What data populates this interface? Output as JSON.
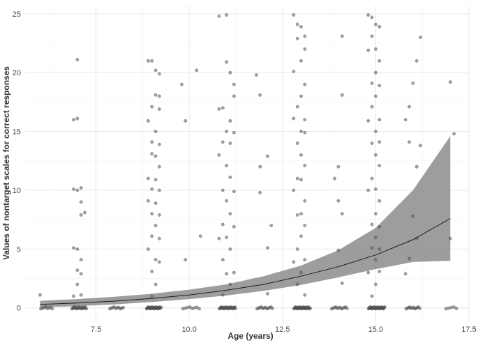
{
  "chart_data": {
    "type": "scatter",
    "title": "",
    "xlabel": "Age (years)",
    "ylabel": "Values of nontarget scales for correct responses",
    "xlim": [
      5.6,
      17.5
    ],
    "ylim": [
      -1.2,
      25.7
    ],
    "x_ticks": [
      7.5,
      10.0,
      12.5,
      15.0,
      17.5
    ],
    "x_tick_labels": [
      "7.5",
      "10.0",
      "12.5",
      "15.0",
      "17.5"
    ],
    "y_ticks": [
      0,
      5,
      10,
      15,
      20,
      25
    ],
    "y_tick_labels": [
      "0",
      "5",
      "10",
      "15",
      "20",
      "25"
    ],
    "grid": true,
    "colors": {
      "points": "#555555",
      "ribbon": "#8c8c8c",
      "fit_line": "#1a1a1a"
    },
    "fit": {
      "x": [
        6.0,
        7.0,
        8.0,
        9.0,
        10.0,
        11.0,
        12.0,
        13.0,
        14.0,
        15.0,
        16.0,
        17.0
      ],
      "y": [
        0.3,
        0.42,
        0.58,
        0.8,
        1.1,
        1.5,
        2.0,
        2.7,
        3.5,
        4.5,
        5.8,
        7.6
      ],
      "lower": [
        0.05,
        0.15,
        0.3,
        0.5,
        0.75,
        1.05,
        1.45,
        1.95,
        2.6,
        3.3,
        3.9,
        4.0
      ],
      "upper": [
        0.6,
        0.75,
        0.95,
        1.2,
        1.55,
        2.0,
        2.7,
        3.6,
        4.9,
        6.8,
        10.0,
        14.6
      ]
    },
    "scatter": [
      [
        6.0,
        1.1
      ],
      [
        7.0,
        21.1
      ],
      [
        6.9,
        16.0
      ],
      [
        7.0,
        16.1
      ],
      [
        6.9,
        10.1
      ],
      [
        7.0,
        10.0
      ],
      [
        7.1,
        10.2
      ],
      [
        7.1,
        9.0
      ],
      [
        7.2,
        8.1
      ],
      [
        7.1,
        7.9
      ],
      [
        6.9,
        5.1
      ],
      [
        7.0,
        5.0
      ],
      [
        7.1,
        4.1
      ],
      [
        7.0,
        3.2
      ],
      [
        7.1,
        2.9
      ],
      [
        7.0,
        2.0
      ],
      [
        6.9,
        1.0
      ],
      [
        7.1,
        1.1
      ],
      [
        8.9,
        21.0
      ],
      [
        9.0,
        21.0
      ],
      [
        9.1,
        20.2
      ],
      [
        9.2,
        19.9
      ],
      [
        9.1,
        18.1
      ],
      [
        9.2,
        18.0
      ],
      [
        9.0,
        17.1
      ],
      [
        9.2,
        16.9
      ],
      [
        8.9,
        15.9
      ],
      [
        9.1,
        15.0
      ],
      [
        9.0,
        14.1
      ],
      [
        9.2,
        13.9
      ],
      [
        9.0,
        13.1
      ],
      [
        9.1,
        12.9
      ],
      [
        9.2,
        12.0
      ],
      [
        8.9,
        11.0
      ],
      [
        9.1,
        10.9
      ],
      [
        9.0,
        10.1
      ],
      [
        9.2,
        10.0
      ],
      [
        8.9,
        9.1
      ],
      [
        9.1,
        8.9
      ],
      [
        9.0,
        8.0
      ],
      [
        9.2,
        7.9
      ],
      [
        9.1,
        7.0
      ],
      [
        9.0,
        6.1
      ],
      [
        9.2,
        5.9
      ],
      [
        8.9,
        5.0
      ],
      [
        9.1,
        4.1
      ],
      [
        9.2,
        3.9
      ],
      [
        9.0,
        3.1
      ],
      [
        9.1,
        2.0
      ],
      [
        9.0,
        1.0
      ],
      [
        9.8,
        19.0
      ],
      [
        10.2,
        20.2
      ],
      [
        10.3,
        6.1
      ],
      [
        9.9,
        15.9
      ],
      [
        9.9,
        4.1
      ],
      [
        10.8,
        24.8
      ],
      [
        11.0,
        24.9
      ],
      [
        11.0,
        20.9
      ],
      [
        11.1,
        20.0
      ],
      [
        11.2,
        19.0
      ],
      [
        11.2,
        18.0
      ],
      [
        10.9,
        17.0
      ],
      [
        10.8,
        16.9
      ],
      [
        11.1,
        15.9
      ],
      [
        11.0,
        15.0
      ],
      [
        11.2,
        14.9
      ],
      [
        10.9,
        14.1
      ],
      [
        11.1,
        14.0
      ],
      [
        10.8,
        13.0
      ],
      [
        11.0,
        12.1
      ],
      [
        11.1,
        11.1
      ],
      [
        10.9,
        10.0
      ],
      [
        11.2,
        9.9
      ],
      [
        11.0,
        9.1
      ],
      [
        11.1,
        8.0
      ],
      [
        10.9,
        7.1
      ],
      [
        11.2,
        6.9
      ],
      [
        11.0,
        6.0
      ],
      [
        10.8,
        5.9
      ],
      [
        11.1,
        5.0
      ],
      [
        10.9,
        4.1
      ],
      [
        11.2,
        3.0
      ],
      [
        11.0,
        2.9
      ],
      [
        11.1,
        2.0
      ],
      [
        10.9,
        1.1
      ],
      [
        11.8,
        19.8
      ],
      [
        11.9,
        18.1
      ],
      [
        11.9,
        12.0
      ],
      [
        12.1,
        12.9
      ],
      [
        11.9,
        9.8
      ],
      [
        12.1,
        5.1
      ],
      [
        12.2,
        7.0
      ],
      [
        12.1,
        1.2
      ],
      [
        12.8,
        24.9
      ],
      [
        12.9,
        24.1
      ],
      [
        13.0,
        23.9
      ],
      [
        13.1,
        23.1
      ],
      [
        12.9,
        22.9
      ],
      [
        13.1,
        22.0
      ],
      [
        13.0,
        21.0
      ],
      [
        12.8,
        20.1
      ],
      [
        13.1,
        19.0
      ],
      [
        13.0,
        18.0
      ],
      [
        12.9,
        17.1
      ],
      [
        13.1,
        16.0
      ],
      [
        12.8,
        16.1
      ],
      [
        13.0,
        15.0
      ],
      [
        13.1,
        14.9
      ],
      [
        12.9,
        14.0
      ],
      [
        13.0,
        13.0
      ],
      [
        13.1,
        12.1
      ],
      [
        12.9,
        11.0
      ],
      [
        13.0,
        10.9
      ],
      [
        12.8,
        10.0
      ],
      [
        13.1,
        9.1
      ],
      [
        13.0,
        8.0
      ],
      [
        12.9,
        7.9
      ],
      [
        13.1,
        7.0
      ],
      [
        13.0,
        6.1
      ],
      [
        12.9,
        5.0
      ],
      [
        13.1,
        4.1
      ],
      [
        12.8,
        3.9
      ],
      [
        13.0,
        3.0
      ],
      [
        12.9,
        2.0
      ],
      [
        13.1,
        1.1
      ],
      [
        13.9,
        11.0
      ],
      [
        14.0,
        12.0
      ],
      [
        14.0,
        9.1
      ],
      [
        14.1,
        8.0
      ],
      [
        14.1,
        23.1
      ],
      [
        14.1,
        18.1
      ],
      [
        14.1,
        2.1
      ],
      [
        14.0,
        4.9
      ],
      [
        14.8,
        24.9
      ],
      [
        14.9,
        24.7
      ],
      [
        15.0,
        24.1
      ],
      [
        15.1,
        23.9
      ],
      [
        14.9,
        23.1
      ],
      [
        15.0,
        22.0
      ],
      [
        14.8,
        21.9
      ],
      [
        15.1,
        21.0
      ],
      [
        15.0,
        20.0
      ],
      [
        14.9,
        19.1
      ],
      [
        15.1,
        18.9
      ],
      [
        15.0,
        18.0
      ],
      [
        14.9,
        17.1
      ],
      [
        15.1,
        16.0
      ],
      [
        14.8,
        15.9
      ],
      [
        15.0,
        15.0
      ],
      [
        15.1,
        14.1
      ],
      [
        14.9,
        14.0
      ],
      [
        15.0,
        13.0
      ],
      [
        15.1,
        12.1
      ],
      [
        14.9,
        11.0
      ],
      [
        15.0,
        10.1
      ],
      [
        14.8,
        10.0
      ],
      [
        15.1,
        9.1
      ],
      [
        15.0,
        8.0
      ],
      [
        14.9,
        7.1
      ],
      [
        15.1,
        6.9
      ],
      [
        15.0,
        6.0
      ],
      [
        14.9,
        5.1
      ],
      [
        15.1,
        5.0
      ],
      [
        15.0,
        4.1
      ],
      [
        14.8,
        3.0
      ],
      [
        15.1,
        3.1
      ],
      [
        15.0,
        2.0
      ],
      [
        14.9,
        1.0
      ],
      [
        15.8,
        16.0
      ],
      [
        15.9,
        17.1
      ],
      [
        16.0,
        19.1
      ],
      [
        16.1,
        21.0
      ],
      [
        16.2,
        23.0
      ],
      [
        15.9,
        14.1
      ],
      [
        16.1,
        12.0
      ],
      [
        16.2,
        13.8
      ],
      [
        16.0,
        7.8
      ],
      [
        15.9,
        4.2
      ],
      [
        16.1,
        5.9
      ],
      [
        15.8,
        2.9
      ],
      [
        17.0,
        19.2
      ],
      [
        17.1,
        14.8
      ],
      [
        17.0,
        5.9
      ]
    ],
    "zero_clusters": [
      [
        6.0,
        6.35,
        8
      ],
      [
        6.85,
        7.25,
        22
      ],
      [
        7.85,
        8.25,
        10
      ],
      [
        8.85,
        9.25,
        28
      ],
      [
        9.8,
        10.3,
        8
      ],
      [
        10.8,
        11.25,
        26
      ],
      [
        11.8,
        12.25,
        12
      ],
      [
        12.8,
        13.25,
        30
      ],
      [
        13.8,
        14.25,
        12
      ],
      [
        14.8,
        15.25,
        32
      ],
      [
        15.8,
        16.2,
        12
      ],
      [
        16.85,
        17.2,
        5
      ]
    ]
  }
}
